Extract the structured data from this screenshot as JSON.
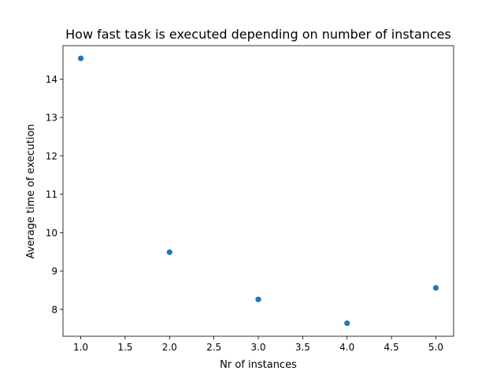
{
  "chart_data": {
    "type": "scatter",
    "title": "How fast task is executed depending on number of instances",
    "xlabel": "Nr of instances",
    "ylabel": "Average time of execution",
    "xlim": [
      0.8,
      5.2
    ],
    "ylim": [
      7.3,
      14.87
    ],
    "xticks": [
      "1.0",
      "1.5",
      "2.0",
      "2.5",
      "3.0",
      "3.5",
      "4.0",
      "4.5",
      "5.0"
    ],
    "yticks": [
      "8",
      "9",
      "10",
      "11",
      "12",
      "13",
      "14"
    ],
    "grid": false,
    "series": [
      {
        "color": "#1f77b4",
        "points": [
          {
            "x": 1,
            "y": 14.54
          },
          {
            "x": 2,
            "y": 9.49
          },
          {
            "x": 3,
            "y": 8.26
          },
          {
            "x": 4,
            "y": 7.64
          },
          {
            "x": 5,
            "y": 8.56
          }
        ]
      }
    ]
  }
}
